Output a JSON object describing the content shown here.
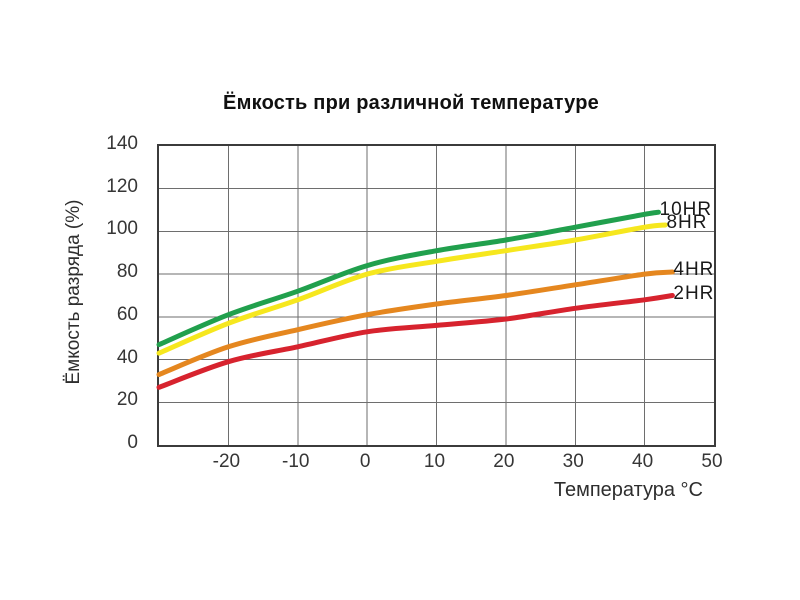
{
  "title": "Ёмкость при различной температуре",
  "axes": {
    "x_label": "Температура °C",
    "y_label": "Ёмкость разряда (%)"
  },
  "chart_data": {
    "type": "line",
    "title": "Ёмкость при различной температуре",
    "xlabel": "Температура °C",
    "ylabel": "Ёмкость разряда (%)",
    "xlim": [
      -30,
      50
    ],
    "ylim": [
      0,
      140
    ],
    "x_ticks": [
      -20,
      -10,
      0,
      10,
      20,
      30,
      40,
      50
    ],
    "y_ticks": [
      0,
      20,
      40,
      60,
      80,
      100,
      120,
      140
    ],
    "grid": true,
    "grid_x_step": 10,
    "grid_y_step": 20,
    "legend_position": "inline-right",
    "series": [
      {
        "name": "10HR",
        "color": "#21a04d",
        "points": [
          [
            -30,
            47
          ],
          [
            -20,
            61
          ],
          [
            -10,
            72
          ],
          [
            0,
            84
          ],
          [
            10,
            91
          ],
          [
            20,
            96
          ],
          [
            30,
            102
          ],
          [
            40,
            108
          ],
          [
            42,
            109
          ]
        ]
      },
      {
        "name": "8HR",
        "color": "#f6e71e",
        "points": [
          [
            -30,
            43
          ],
          [
            -20,
            57
          ],
          [
            -10,
            68
          ],
          [
            0,
            80
          ],
          [
            10,
            86
          ],
          [
            20,
            91
          ],
          [
            30,
            96
          ],
          [
            40,
            102
          ],
          [
            43,
            103
          ]
        ]
      },
      {
        "name": "4HR",
        "color": "#e5871f",
        "points": [
          [
            -30,
            33
          ],
          [
            -20,
            46
          ],
          [
            -10,
            54
          ],
          [
            0,
            61
          ],
          [
            10,
            66
          ],
          [
            20,
            70
          ],
          [
            30,
            75
          ],
          [
            40,
            80
          ],
          [
            44,
            81
          ]
        ]
      },
      {
        "name": "2HR",
        "color": "#d7232e",
        "points": [
          [
            -30,
            27
          ],
          [
            -20,
            39
          ],
          [
            -10,
            46
          ],
          [
            0,
            53
          ],
          [
            10,
            56
          ],
          [
            20,
            59
          ],
          [
            30,
            64
          ],
          [
            40,
            68
          ],
          [
            44,
            70
          ]
        ]
      }
    ]
  },
  "colors": {
    "background": "#ffffff",
    "grid": "#6e6e6e",
    "plot_border": "#3b3b3b",
    "text": "#363636"
  }
}
